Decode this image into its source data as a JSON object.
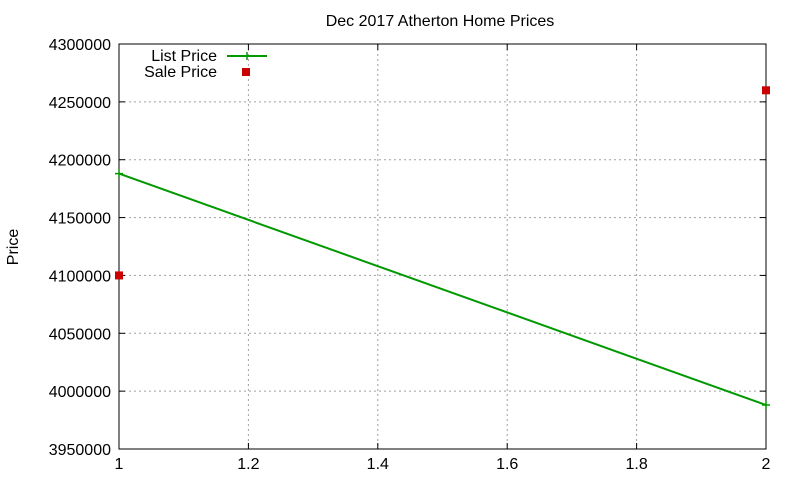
{
  "chart_data": {
    "type": "line",
    "title": "Dec 2017 Atherton Home Prices",
    "xlabel": "",
    "ylabel": "Price",
    "xlim": [
      1,
      2
    ],
    "ylim": [
      3950000,
      4300000
    ],
    "xticks": [
      "1",
      "1.2",
      "1.4",
      "1.6",
      "1.8",
      "2"
    ],
    "yticks": [
      "3950000",
      "4000000",
      "4050000",
      "4100000",
      "4150000",
      "4200000",
      "4250000",
      "4300000"
    ],
    "grid": true,
    "legend_position": "top-left",
    "series": [
      {
        "name": "List Price",
        "style": "line+cross",
        "color": "#009900",
        "points": [
          {
            "x": 1,
            "y": 4188000
          },
          {
            "x": 2,
            "y": 3988000
          }
        ]
      },
      {
        "name": "Sale Price",
        "style": "square",
        "color": "#cc0000",
        "points": [
          {
            "x": 1,
            "y": 4100000
          },
          {
            "x": 2,
            "y": 4260000
          }
        ]
      }
    ]
  }
}
